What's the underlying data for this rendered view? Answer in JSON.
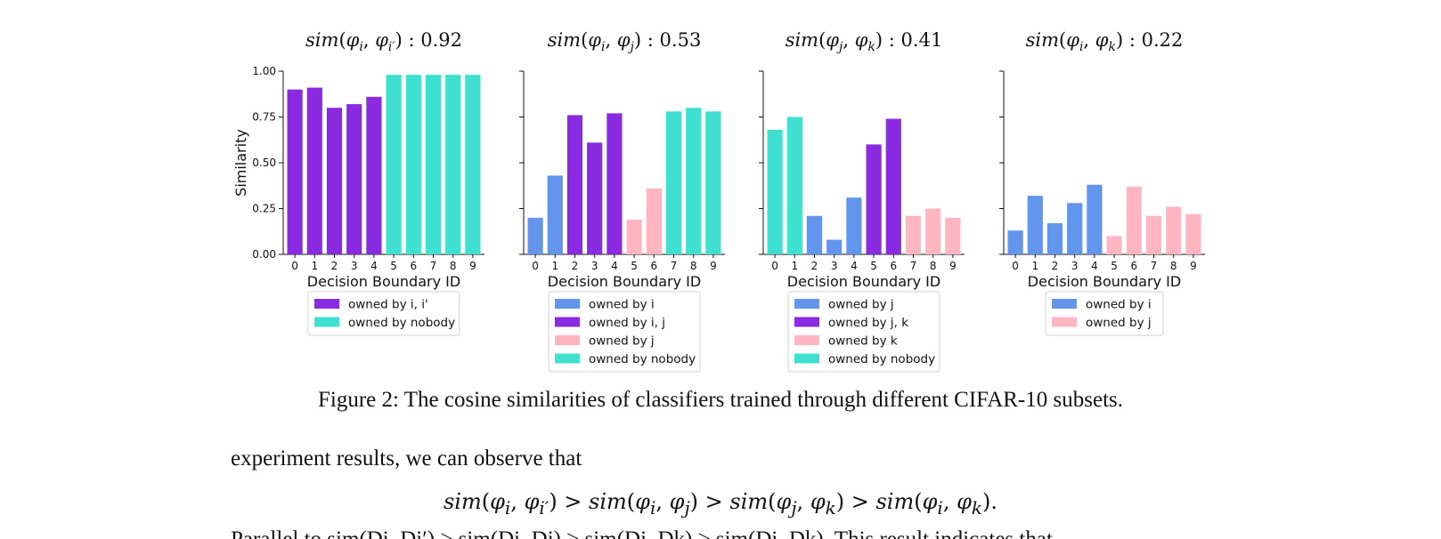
{
  "chart_data": [
    {
      "type": "bar",
      "title": "sim(φi, φi′) : 0.92",
      "title_parts": {
        "fn": "sim",
        "a": "φ",
        "a_sub": "i",
        "b": "φ",
        "b_sub": "i′",
        "value": "0.92"
      },
      "categories": [
        "0",
        "1",
        "2",
        "3",
        "4",
        "5",
        "6",
        "7",
        "8",
        "9"
      ],
      "values": [
        0.9,
        0.91,
        0.8,
        0.82,
        0.86,
        0.98,
        0.98,
        0.98,
        0.98,
        0.98
      ],
      "bar_owner": [
        0,
        0,
        0,
        0,
        0,
        1,
        1,
        1,
        1,
        1
      ],
      "legend": [
        {
          "label": "owned by i, i'",
          "color": "#8A2BE2"
        },
        {
          "label": "owned by nobody",
          "color": "#40E0D0"
        }
      ],
      "xlabel": "Decision Boundary ID",
      "ylabel": "Similarity",
      "ylim": [
        0,
        1
      ],
      "yticks": [
        "0.00",
        "0.25",
        "0.50",
        "0.75",
        "1.00"
      ],
      "legend_position": "below"
    },
    {
      "type": "bar",
      "title": "sim(φi, φj) : 0.53",
      "title_parts": {
        "fn": "sim",
        "a": "φ",
        "a_sub": "i",
        "b": "φ",
        "b_sub": "j",
        "value": "0.53"
      },
      "categories": [
        "0",
        "1",
        "2",
        "3",
        "4",
        "5",
        "6",
        "7",
        "8",
        "9"
      ],
      "values": [
        0.2,
        0.43,
        0.76,
        0.61,
        0.77,
        0.19,
        0.36,
        0.78,
        0.8,
        0.78
      ],
      "bar_owner": [
        0,
        0,
        1,
        1,
        1,
        2,
        2,
        3,
        3,
        3
      ],
      "legend": [
        {
          "label": "owned by i",
          "color": "#6495ED"
        },
        {
          "label": "owned by i, j",
          "color": "#8A2BE2"
        },
        {
          "label": "owned by j",
          "color": "#FFB6C1"
        },
        {
          "label": "owned by nobody",
          "color": "#40E0D0"
        }
      ],
      "xlabel": "Decision Boundary ID",
      "ylabel": "",
      "ylim": [
        0,
        1
      ],
      "yticks": [
        "",
        "",
        "",
        "",
        ""
      ],
      "legend_position": "below"
    },
    {
      "type": "bar",
      "title": "sim(φj, φk) : 0.41",
      "title_parts": {
        "fn": "sim",
        "a": "φ",
        "a_sub": "j",
        "b": "φ",
        "b_sub": "k",
        "value": "0.41"
      },
      "categories": [
        "0",
        "1",
        "2",
        "3",
        "4",
        "5",
        "6",
        "7",
        "8",
        "9"
      ],
      "values": [
        0.68,
        0.75,
        0.21,
        0.08,
        0.31,
        0.6,
        0.74,
        0.21,
        0.25,
        0.2
      ],
      "bar_owner": [
        3,
        3,
        0,
        0,
        0,
        1,
        1,
        2,
        2,
        2
      ],
      "legend": [
        {
          "label": "owned by j",
          "color": "#6495ED"
        },
        {
          "label": "owned by j, k",
          "color": "#8A2BE2"
        },
        {
          "label": "owned by k",
          "color": "#FFB6C1"
        },
        {
          "label": "owned by nobody",
          "color": "#40E0D0"
        }
      ],
      "xlabel": "Decision Boundary ID",
      "ylabel": "",
      "ylim": [
        0,
        1
      ],
      "yticks": [
        "",
        "",
        "",
        "",
        ""
      ],
      "legend_position": "below"
    },
    {
      "type": "bar",
      "title": "sim(φi, φk) : 0.22",
      "title_parts": {
        "fn": "sim",
        "a": "φ",
        "a_sub": "i",
        "b": "φ",
        "b_sub": "k",
        "value": "0.22"
      },
      "categories": [
        "0",
        "1",
        "2",
        "3",
        "4",
        "5",
        "6",
        "7",
        "8",
        "9"
      ],
      "values": [
        0.13,
        0.32,
        0.17,
        0.28,
        0.38,
        0.1,
        0.37,
        0.21,
        0.26,
        0.22
      ],
      "bar_owner": [
        0,
        0,
        0,
        0,
        0,
        1,
        1,
        1,
        1,
        1
      ],
      "legend": [
        {
          "label": "owned by i",
          "color": "#6495ED"
        },
        {
          "label": "owned by j",
          "color": "#FFB6C1"
        }
      ],
      "xlabel": "Decision Boundary ID",
      "ylabel": "",
      "ylim": [
        0,
        1
      ],
      "yticks": [
        "",
        "",
        "",
        "",
        ""
      ],
      "legend_position": "below"
    }
  ],
  "caption": "Figure 2: The cosine similarities of classifiers trained through different CIFAR-10 subsets.",
  "body_text": "experiment results, we can observe that",
  "equation": {
    "terms": [
      {
        "a_sub": "i",
        "b_sub": "i′"
      },
      {
        "a_sub": "i",
        "b_sub": "j"
      },
      {
        "a_sub": "j",
        "b_sub": "k"
      },
      {
        "a_sub": "i",
        "b_sub": "k"
      }
    ],
    "fn": "sim",
    "symbol": "φ",
    "relation": ">",
    "end": "."
  },
  "partial_line": "Parallel to sim(Di, Di′) > sim(Di, Dj) > sim(Dj, Dk) > sim(Di, Dk). This result indicates that"
}
